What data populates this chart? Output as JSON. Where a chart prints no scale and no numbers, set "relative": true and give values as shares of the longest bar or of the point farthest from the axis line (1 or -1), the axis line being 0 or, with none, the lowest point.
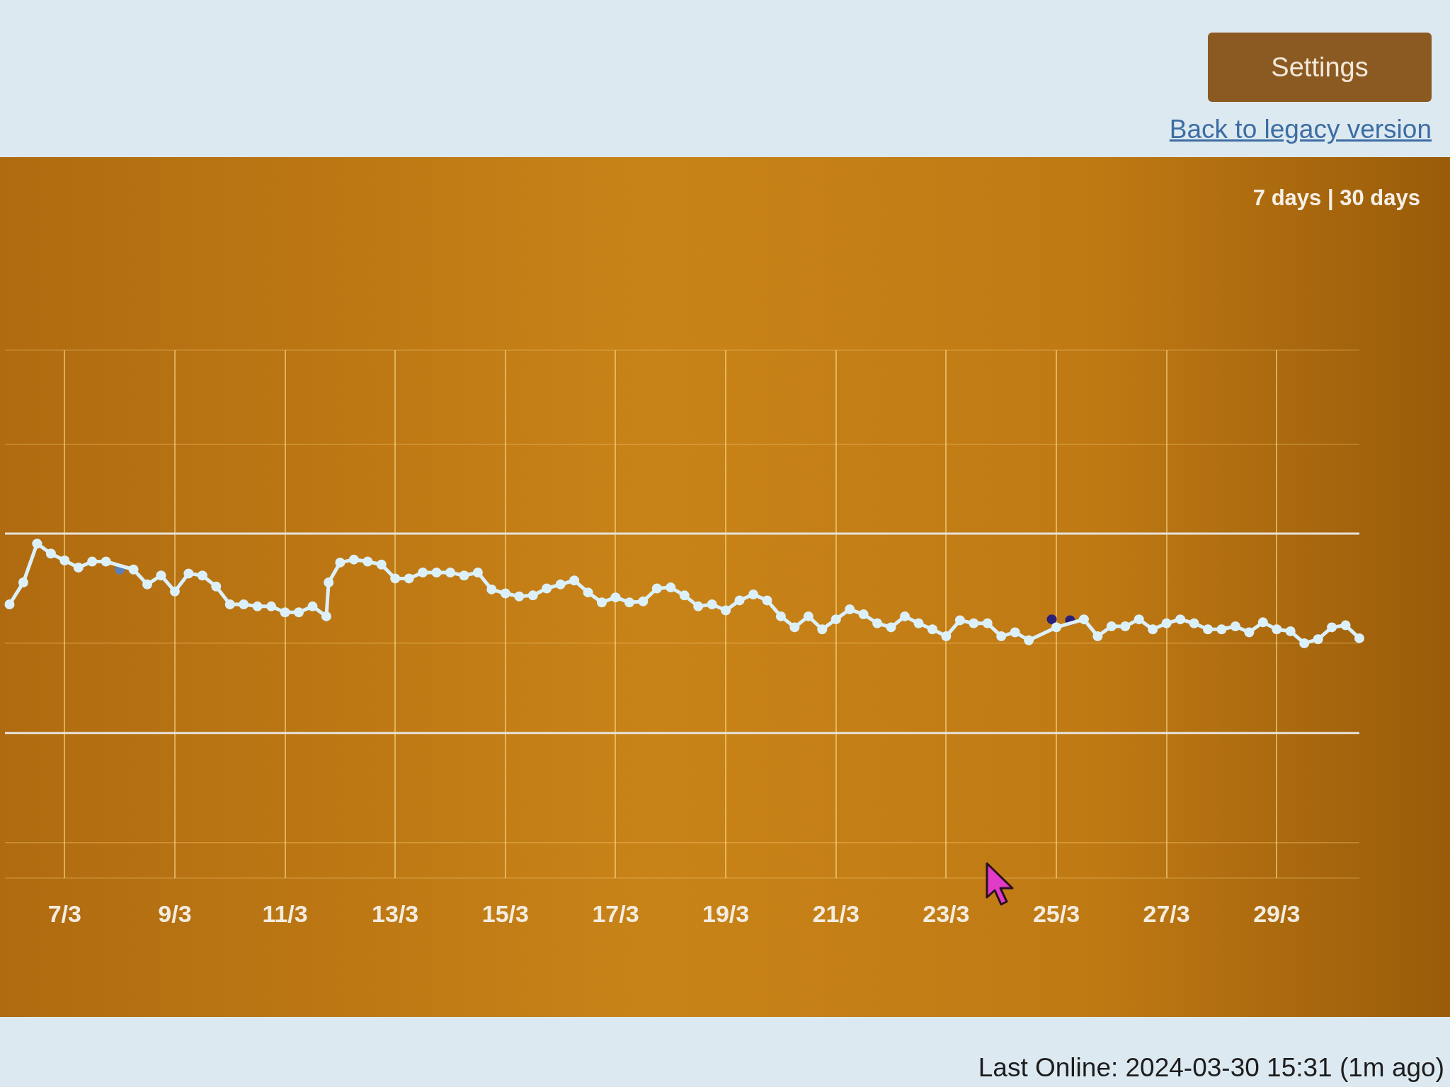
{
  "chart_data": {
    "type": "line",
    "relative": true,
    "series": [
      {
        "color": "#dcf0fa",
        "x": [
          "2024-03-06T00:00",
          "2024-03-06T06:00",
          "2024-03-06T12:00",
          "2024-03-06T18:00",
          "2024-03-07T00:00",
          "2024-03-07T06:00",
          "2024-03-07T12:00",
          "2024-03-07T18:00",
          "2024-03-08T06:00",
          "2024-03-08T12:00",
          "2024-03-08T18:00",
          "2024-03-09T00:00",
          "2024-03-09T06:00",
          "2024-03-09T12:00",
          "2024-03-09T18:00",
          "2024-03-10T00:00",
          "2024-03-10T06:00",
          "2024-03-10T12:00",
          "2024-03-10T18:00",
          "2024-03-11T00:00",
          "2024-03-11T06:00",
          "2024-03-11T12:00",
          "2024-03-11T18:00",
          "2024-03-11T19:00",
          "2024-03-12T00:00",
          "2024-03-12T06:00",
          "2024-03-12T12:00",
          "2024-03-12T18:00",
          "2024-03-13T00:00",
          "2024-03-13T06:00",
          "2024-03-13T12:00",
          "2024-03-13T18:00",
          "2024-03-14T00:00",
          "2024-03-14T06:00",
          "2024-03-14T12:00",
          "2024-03-14T18:00",
          "2024-03-15T00:00",
          "2024-03-15T06:00",
          "2024-03-15T12:00",
          "2024-03-15T18:00",
          "2024-03-16T00:00",
          "2024-03-16T06:00",
          "2024-03-16T12:00",
          "2024-03-16T18:00",
          "2024-03-17T00:00",
          "2024-03-17T06:00",
          "2024-03-17T12:00",
          "2024-03-17T18:00",
          "2024-03-18T00:00",
          "2024-03-18T06:00",
          "2024-03-18T12:00",
          "2024-03-18T18:00",
          "2024-03-19T00:00",
          "2024-03-19T06:00",
          "2024-03-19T12:00",
          "2024-03-19T18:00",
          "2024-03-20T00:00",
          "2024-03-20T06:00",
          "2024-03-20T12:00",
          "2024-03-20T18:00",
          "2024-03-21T00:00",
          "2024-03-21T06:00",
          "2024-03-21T12:00",
          "2024-03-21T18:00",
          "2024-03-22T00:00",
          "2024-03-22T06:00",
          "2024-03-22T12:00",
          "2024-03-22T18:00",
          "2024-03-23T00:00",
          "2024-03-23T06:00",
          "2024-03-23T12:00",
          "2024-03-23T18:00",
          "2024-03-24T00:00",
          "2024-03-24T06:00",
          "2024-03-24T12:00",
          "2024-03-25T00:00",
          "2024-03-25T12:00",
          "2024-03-25T18:00",
          "2024-03-26T00:00",
          "2024-03-26T06:00",
          "2024-03-26T12:00",
          "2024-03-26T18:00",
          "2024-03-27T00:00",
          "2024-03-27T06:00",
          "2024-03-27T12:00",
          "2024-03-27T18:00",
          "2024-03-28T00:00",
          "2024-03-28T06:00",
          "2024-03-28T12:00",
          "2024-03-28T18:00",
          "2024-03-29T00:00",
          "2024-03-29T06:00",
          "2024-03-29T12:00",
          "2024-03-29T18:00",
          "2024-03-30T00:00",
          "2024-03-30T06:00",
          "2024-03-30T12:00"
        ],
        "values": [
          0.39,
          0.61,
          1,
          0.9,
          0.83,
          0.76,
          0.82,
          0.82,
          0.74,
          0.59,
          0.68,
          0.52,
          0.7,
          0.68,
          0.57,
          0.39,
          0.39,
          0.37,
          0.37,
          0.31,
          0.31,
          0.37,
          0.27,
          0.61,
          0.81,
          0.84,
          0.82,
          0.79,
          0.65,
          0.65,
          0.71,
          0.71,
          0.71,
          0.68,
          0.71,
          0.54,
          0.5,
          0.47,
          0.48,
          0.55,
          0.59,
          0.63,
          0.51,
          0.41,
          0.46,
          0.41,
          0.42,
          0.55,
          0.56,
          0.48,
          0.37,
          0.39,
          0.33,
          0.43,
          0.49,
          0.43,
          0.27,
          0.16,
          0.27,
          0.14,
          0.24,
          0.34,
          0.29,
          0.2,
          0.16,
          0.27,
          0.2,
          0.14,
          0.07,
          0.23,
          0.2,
          0.2,
          0.07,
          0.11,
          0.03,
          0.16,
          0.24,
          0.07,
          0.17,
          0.17,
          0.24,
          0.14,
          0.2,
          0.24,
          0.2,
          0.14,
          0.14,
          0.17,
          0.11,
          0.21,
          0.14,
          0.12,
          0,
          0.04,
          0.16,
          0.18,
          0.05
        ]
      },
      {
        "type": "scatter",
        "color": "#5a80b8",
        "x": [
          "2024-03-08T00:00"
        ],
        "values": [
          0.74
        ]
      },
      {
        "type": "scatter",
        "color": "#2b1f78",
        "x": [
          "2024-03-24T22:00",
          "2024-03-25T06:00"
        ],
        "values": [
          0.24,
          0.23
        ]
      }
    ],
    "xlim": [
      "2024-03-05T22:00",
      "2024-03-30T12:00"
    ],
    "xticks": [
      {
        "value": "2024-03-07",
        "label": "7/3"
      },
      {
        "value": "2024-03-09",
        "label": "9/3"
      },
      {
        "value": "2024-03-11",
        "label": "11/3"
      },
      {
        "value": "2024-03-13",
        "label": "13/3"
      },
      {
        "value": "2024-03-15",
        "label": "15/3"
      },
      {
        "value": "2024-03-17",
        "label": "17/3"
      },
      {
        "value": "2024-03-19",
        "label": "19/3"
      },
      {
        "value": "2024-03-21",
        "label": "21/3"
      },
      {
        "value": "2024-03-23",
        "label": "23/3"
      },
      {
        "value": "2024-03-25",
        "label": "25/3"
      },
      {
        "value": "2024-03-27",
        "label": "27/3"
      },
      {
        "value": "2024-03-29",
        "label": "29/3"
      }
    ],
    "grid": true,
    "marker": "circle",
    "line_style": "solid",
    "ref_lines": [
      {
        "axis": "y",
        "value": 1.1,
        "color": "#e6e2dc"
      },
      {
        "axis": "y",
        "value": -0.9,
        "color": "#e6e2dc"
      }
    ],
    "annotations": [
      "Settings",
      "Back to legacy version",
      "7 days | 30 days",
      "Last Online: 2024-03-30 15:31 (1m ago)"
    ]
  }
}
